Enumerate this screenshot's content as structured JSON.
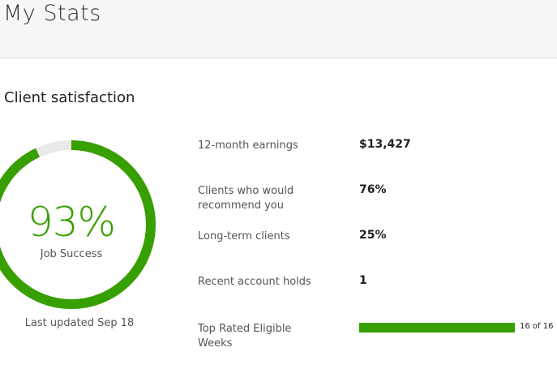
{
  "header": {
    "title": "My Stats"
  },
  "section": {
    "title": "Client satisfaction"
  },
  "job_success": {
    "percent": 93,
    "value_text": "93%",
    "label": "Job Success",
    "updated": "Last updated Sep 18"
  },
  "stats": [
    {
      "label": "12-month earnings",
      "value": "$13,427"
    },
    {
      "label": "Clients who would recommend you",
      "value": "76%"
    },
    {
      "label": "Long-term clients",
      "value": "25%"
    },
    {
      "label": "Recent account holds",
      "value": "1"
    }
  ],
  "top_rated": {
    "label": "Top Rated Eligible Weeks",
    "current": 16,
    "total": 16,
    "progress_text": "16 of 16"
  },
  "colors": {
    "accent": "#37a000",
    "track": "#e9e9e9"
  }
}
